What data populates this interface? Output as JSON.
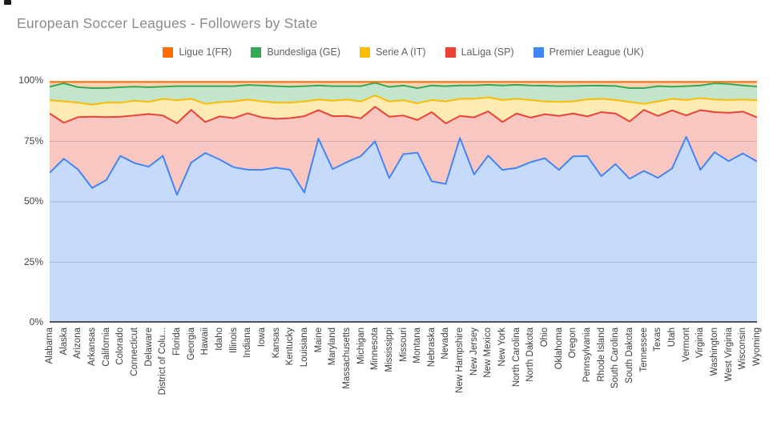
{
  "chart_data": {
    "type": "area",
    "stacked": true,
    "percent_stacked": true,
    "title": "European Soccer Leagues - Followers by State",
    "legend_position": "top",
    "grid": true,
    "grid_values": [
      25,
      50,
      75
    ],
    "ylim": [
      0,
      100
    ],
    "y_ticks": [
      "100%",
      "75%",
      "50%",
      "25%",
      "0%"
    ],
    "x_label_rotation": 90,
    "categories": [
      "Alabama",
      "Alaska",
      "Arizona",
      "Arkansas",
      "California",
      "Colorado",
      "Connecticut",
      "Delaware",
      "District of Colu...",
      "Florida",
      "Georgia",
      "Hawaii",
      "Idaho",
      "Illinois",
      "Indiana",
      "Iowa",
      "Kansas",
      "Kentucky",
      "Louisiana",
      "Maine",
      "Maryland",
      "Massachusetts",
      "Michigan",
      "Minnesota",
      "Mississippi",
      "Missouri",
      "Montana",
      "Nebraska",
      "Nevada",
      "New Hampshire",
      "New Jersey",
      "New Mexico",
      "New York",
      "North Carolina",
      "North Dakota",
      "Ohio",
      "Oklahoma",
      "Oregon",
      "Pennsylvania",
      "Rhode Island",
      "South Carolina",
      "South Dakota",
      "Tennessee",
      "Texas",
      "Utah",
      "Vermont",
      "Virginia",
      "Washington",
      "West Virginia",
      "Wisconsin",
      "Wyoming"
    ],
    "stack_order": "bottom_to_top",
    "series": [
      {
        "name": "Premier League (UK)",
        "color": "#4285f4",
        "values": [
          62.0,
          67.8,
          63.4,
          55.7,
          59.0,
          69.0,
          66.0,
          64.5,
          69.0,
          52.9,
          66.2,
          70.2,
          67.5,
          64.3,
          63.3,
          63.2,
          64.1,
          63.2,
          53.8,
          76.1,
          63.5,
          66.4,
          68.9,
          75.0,
          59.8,
          69.7,
          70.3,
          58.5,
          57.4,
          76.4,
          61.3,
          69.1,
          63.2,
          64.0,
          66.4,
          68.0,
          63.2,
          68.8,
          68.9,
          60.6,
          65.6,
          59.5,
          62.8,
          59.9,
          63.8,
          76.9,
          63.2,
          70.5,
          66.8,
          70.0,
          66.7
        ]
      },
      {
        "name": "LaLiga (SP)",
        "color": "#ea4335",
        "values": [
          24.5,
          14.9,
          21.6,
          29.5,
          26.0,
          16.2,
          19.7,
          21.8,
          16.7,
          29.6,
          21.8,
          12.8,
          17.8,
          20.3,
          23.3,
          21.7,
          20.2,
          21.4,
          31.6,
          11.8,
          21.9,
          19.1,
          15.6,
          14.3,
          25.4,
          16.0,
          13.5,
          28.6,
          25.0,
          9.1,
          23.6,
          18.3,
          19.8,
          22.5,
          18.4,
          18.2,
          22.3,
          17.7,
          16.4,
          26.5,
          20.9,
          23.7,
          25.2,
          25.6,
          24.0,
          8.8,
          24.7,
          16.6,
          20.0,
          17.3,
          18.2
        ]
      },
      {
        "name": "Serie A (IT)",
        "color": "#fbbc04",
        "values": [
          5.5,
          8.8,
          6.0,
          5.0,
          6.0,
          5.8,
          6.1,
          5.0,
          6.9,
          9.5,
          4.6,
          7.5,
          5.9,
          6.9,
          5.7,
          6.6,
          6.7,
          6.4,
          6.1,
          4.4,
          6.4,
          6.8,
          7.0,
          4.7,
          6.3,
          6.3,
          6.9,
          5.0,
          9.1,
          7.1,
          7.7,
          5.8,
          9.1,
          6.1,
          7.3,
          5.3,
          5.8,
          5.0,
          7.1,
          5.5,
          5.6,
          8.1,
          2.5,
          6.0,
          4.8,
          6.4,
          5.0,
          5.2,
          5.3,
          5.0,
          7.1
        ]
      },
      {
        "name": "Bundesliga (GE)",
        "color": "#34a853",
        "values": [
          5.6,
          7.5,
          6.4,
          6.8,
          6.0,
          6.4,
          5.8,
          6.1,
          5.0,
          5.8,
          5.2,
          7.3,
          6.6,
          6.3,
          6.0,
          6.6,
          6.8,
          6.6,
          6.3,
          5.8,
          6.0,
          5.5,
          6.3,
          5.2,
          6.0,
          6.1,
          6.3,
          6.0,
          6.3,
          5.5,
          5.5,
          5.2,
          6.0,
          5.8,
          6.0,
          6.5,
          6.5,
          6.4,
          5.6,
          5.4,
          5.8,
          5.7,
          6.5,
          6.3,
          5.0,
          5.7,
          5.2,
          6.7,
          6.6,
          5.8,
          5.7
        ]
      },
      {
        "name": "Ligue 1(FR)",
        "color": "#ff6d01",
        "values": [
          2.4,
          1.0,
          2.6,
          3.0,
          3.0,
          2.6,
          2.4,
          2.6,
          2.4,
          2.2,
          2.2,
          2.2,
          2.2,
          2.2,
          1.7,
          1.9,
          2.2,
          2.4,
          2.2,
          1.9,
          2.2,
          2.2,
          2.2,
          0.8,
          2.5,
          1.9,
          3.0,
          1.9,
          2.2,
          1.9,
          1.9,
          1.6,
          1.9,
          1.6,
          1.9,
          2.0,
          2.2,
          2.1,
          2.0,
          2.0,
          2.1,
          3.0,
          3.0,
          2.2,
          2.4,
          2.2,
          1.9,
          1.0,
          1.3,
          1.9,
          2.3
        ]
      }
    ]
  }
}
